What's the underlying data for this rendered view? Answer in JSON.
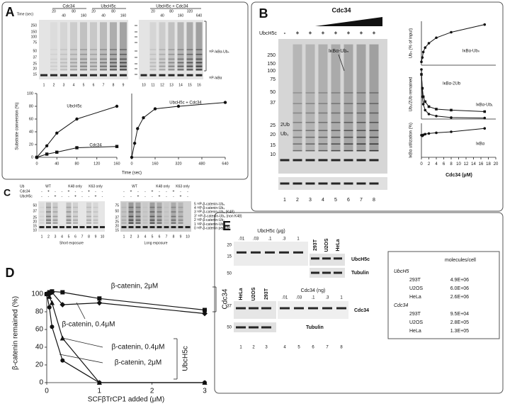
{
  "panel_a": {
    "letter": "A",
    "time_label": "Time (sec)",
    "groups": [
      "Cdc34",
      "UbcH5c",
      "UbcH5c + Cdc34"
    ],
    "times_left": [
      20,
      40,
      80,
      160
    ],
    "times_right": [
      20,
      40,
      80,
      160,
      320,
      640
    ],
    "mw": [
      250,
      150,
      100,
      75,
      50,
      37,
      25,
      20,
      15
    ],
    "bands": [
      "³²P-IκBα-Ubₙ",
      "³²P-IκBα"
    ],
    "lanes": [
      1,
      2,
      3,
      4,
      5,
      6,
      7,
      8,
      9,
      10,
      11,
      12,
      13,
      14,
      15,
      16
    ],
    "chart_left": {
      "y_label": "Substrate conversion (%)",
      "xlim": [
        0,
        160
      ],
      "xticks": [
        0,
        40,
        80,
        120,
        160
      ],
      "ylim": [
        0,
        100
      ],
      "yticks": [
        0,
        20,
        40,
        60,
        80,
        100
      ],
      "series": [
        {
          "name": "UbcH5c",
          "marker": "circle",
          "x": [
            0,
            20,
            40,
            80,
            160
          ],
          "values": [
            0,
            18,
            38,
            60,
            80
          ]
        },
        {
          "name": "Cdc34",
          "marker": "square",
          "x": [
            0,
            20,
            40,
            80,
            160
          ],
          "values": [
            0,
            5,
            8,
            15,
            17
          ]
        }
      ]
    },
    "chart_right": {
      "xlim": [
        0,
        640
      ],
      "xticks": [
        0,
        160,
        320,
        480,
        640
      ],
      "ylim": [
        0,
        100
      ],
      "series": [
        {
          "name": "UbcH5c + Cdc34",
          "marker": "circle",
          "x": [
            0,
            20,
            40,
            80,
            160,
            320,
            640
          ],
          "values": [
            0,
            22,
            45,
            62,
            76,
            80,
            86
          ]
        }
      ]
    },
    "x_label": "Time (sec)"
  },
  "panel_b": {
    "letter": "B",
    "cdc34": "Cdc34",
    "ubch5c": "UbcH5c",
    "signs": [
      "-",
      "+",
      "+",
      "+",
      "+",
      "+",
      "+",
      "+"
    ],
    "mw": [
      250,
      150,
      100,
      75,
      50,
      37,
      25,
      20,
      15,
      10
    ],
    "bands": [
      "IκBα-Ubₙ",
      "2Ub",
      "Ub₁"
    ],
    "lanes": [
      1,
      2,
      3,
      4,
      5,
      6,
      7,
      8
    ],
    "x_label": "Cdc34 (μM)",
    "charts": [
      {
        "y_label": "Ubₙ (% of input)",
        "xlim": [
          0,
          20
        ],
        "ylim": [
          0,
          40
        ],
        "series": [
          {
            "name": "IκBα-Ubₙ",
            "marker": "circle",
            "x": [
              0,
              0.25,
              0.5,
              1,
              2,
              4,
              8,
              17
            ],
            "values": [
              3,
              7,
              12,
              16,
              20,
              25,
              30,
              37
            ]
          }
        ]
      },
      {
        "y_label": "Ub₁/2Ub remained",
        "xlim": [
          0,
          20
        ],
        "ylim": [
          0,
          100
        ],
        "series": [
          {
            "name": "IκBα-2Ub",
            "marker": "square",
            "x": [
              0,
              0.25,
              0.5,
              1,
              2,
              4,
              8,
              17
            ],
            "values": [
              90,
              62,
              45,
              35,
              25,
              20,
              18,
              15
            ]
          },
          {
            "name": "IκBα-Ub₁",
            "marker": "circle",
            "x": [
              0,
              0.25,
              0.5,
              1,
              2,
              4,
              8,
              17
            ],
            "values": [
              100,
              45,
              30,
              18,
              10,
              6,
              3,
              2
            ]
          }
        ]
      },
      {
        "y_label": "IκBα utilization (%)",
        "xlim": [
          0,
          20
        ],
        "xticks": [
          0,
          2,
          4,
          6,
          8,
          10,
          12,
          14,
          16,
          18,
          20
        ],
        "ylim": [
          0,
          100
        ],
        "series": [
          {
            "name": "IκBα",
            "marker": "circle",
            "x": [
              0,
              0.25,
              0.5,
              1,
              2,
              4,
              8,
              17
            ],
            "values": [
              65,
              63,
              66,
              68,
              70,
              72,
              75,
              85
            ]
          }
        ]
      }
    ]
  },
  "panel_c": {
    "letter": "C",
    "rows": [
      "Ub",
      "Cdc34",
      "UbcH5c"
    ],
    "gels": [
      {
        "ub_types": [
          "WT",
          "K48 only",
          "K63 only"
        ],
        "cdc34": [
          "-",
          "+",
          "-",
          "-",
          "+",
          "-",
          "-",
          "+",
          "-",
          "-"
        ],
        "ubch5c": [
          "-",
          "-",
          "+",
          "-",
          "-",
          "+",
          "-",
          "-",
          "+",
          "-"
        ],
        "mw": [
          50,
          37,
          25,
          20,
          15,
          10
        ],
        "lanes": [
          1,
          2,
          3,
          4,
          5,
          6,
          7,
          8,
          9,
          10
        ],
        "exposure": "Short exposure"
      },
      {
        "ub_types": [
          "WT",
          "K48 only",
          "K63 only"
        ],
        "cdc34": [
          "-",
          "+",
          "-",
          "-",
          "+",
          "-",
          "-",
          "+",
          "-",
          "-"
        ],
        "ubch5c": [
          "-",
          "-",
          "+",
          "-",
          "-",
          "+",
          "-",
          "-",
          "+",
          "-"
        ],
        "mw": [
          75,
          50,
          37,
          25,
          20,
          15
        ],
        "lanes": [
          1,
          2,
          3,
          4,
          5,
          6,
          7,
          8,
          9,
          10
        ],
        "exposure": "Long exposure"
      }
    ],
    "ladder": [
      "5 ³²P-β-catenin-Ub₅",
      "4 ³²P-β-catenin-Ub₄",
      "3 ³²P-β-catenin-Ub₃ (K48)",
      "3' ³²P-β-catenin-Ub₃ (non K48)",
      "2 ³²P-β-catenin-Ub₂",
      "1 ³²P-β-catenin-Ub₁",
      "0 ³²P-β-catenin peptide"
    ]
  },
  "panel_d": {
    "letter": "D",
    "y_label": "β-catenin remained (%)",
    "x_label": "SCFβTrCP1 added (μM)",
    "xlim": [
      0,
      3
    ],
    "xticks": [
      0,
      1,
      2,
      3
    ],
    "ylim": [
      0,
      100
    ],
    "yticks": [
      0,
      20,
      40,
      60,
      80,
      100
    ],
    "series": [
      {
        "name": "β-catenin, 2μM",
        "marker": "square",
        "x": [
          0,
          0.05,
          0.1,
          0.3,
          1,
          3
        ],
        "values": [
          100,
          102,
          103,
          102,
          95,
          82
        ]
      },
      {
        "name": "β-catenin, 0.4μM",
        "marker": "diamond",
        "x": [
          0,
          0.05,
          0.1,
          0.3,
          1,
          3
        ],
        "values": [
          100,
          100,
          102,
          88,
          90,
          78
        ]
      },
      {
        "name": "β-catenin, 0.4μM",
        "marker": "triangle",
        "x": [
          0,
          0.05,
          0.1,
          0.3,
          1,
          3
        ],
        "values": [
          100,
          97,
          90,
          50,
          0,
          0
        ]
      },
      {
        "name": "β-catenin, 2μM",
        "marker": "circle",
        "x": [
          0,
          0.05,
          0.1,
          0.3,
          1,
          3
        ],
        "values": [
          100,
          85,
          63,
          25,
          0,
          0
        ]
      }
    ],
    "groups": [
      "Cdc34",
      "UbcH5c"
    ]
  },
  "panel_e": {
    "letter": "E",
    "upper": {
      "title": "UbcH5c (μg)",
      "amounts": [
        ".01",
        ".03",
        ".1",
        ".3",
        1
      ],
      "cells": [
        "293T",
        "U2OS",
        "HeLa"
      ],
      "mw": [
        20,
        15,
        50
      ],
      "labels": [
        "UbcH5c",
        "Tubulin"
      ]
    },
    "lower": {
      "cells": [
        "HeLa",
        "U2OS",
        "293T"
      ],
      "title": "Cdc34 (ng)",
      "amounts": [
        ".01",
        ".03",
        ".1",
        ".3",
        1
      ],
      "mw": [
        37,
        50
      ],
      "labels": [
        "Cdc34",
        "Tubulin"
      ]
    },
    "lanes": [
      1,
      2,
      3,
      4,
      5,
      6,
      7,
      8
    ],
    "table": {
      "header": "molecules/cell",
      "groups": [
        {
          "name": "UbcH5",
          "rows": [
            [
              "293T",
              "4.9E+06"
            ],
            [
              "U2OS",
              "6.0E+06"
            ],
            [
              "HeLa",
              "2.6E+06"
            ]
          ]
        },
        {
          "name": "Cdc34",
          "rows": [
            [
              "293T",
              "9.5E+04"
            ],
            [
              "U2OS",
              "2.8E+05"
            ],
            [
              "HeLa",
              "1.3E+05"
            ]
          ]
        }
      ]
    }
  }
}
